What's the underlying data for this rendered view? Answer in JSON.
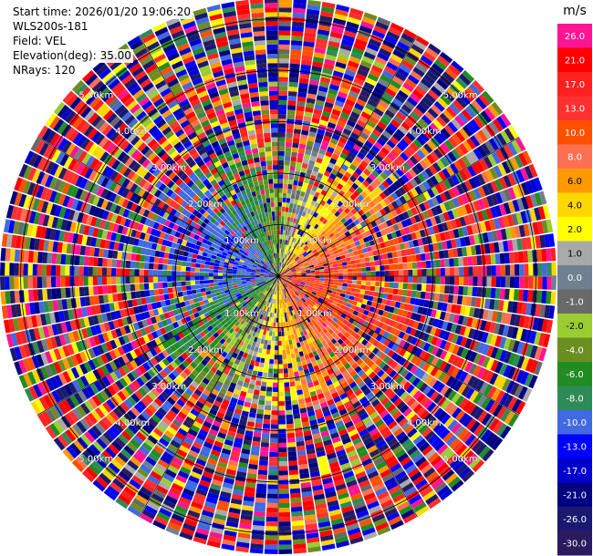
{
  "header": {
    "start_time": "Start time: 2026/01/20 19:06:20",
    "instrument": "WLS200s-181",
    "field": "Field: VEL",
    "elevation": "Elevation(deg): 35.00",
    "nrays": "NRays: 120"
  },
  "chart_data": {
    "type": "heatmap",
    "subtype": "polar-ppi",
    "field": "VEL",
    "n_rays": 120,
    "range_rings_km": [
      1.0,
      2.0,
      3.0,
      4.0,
      5.0
    ],
    "range_ring_labels": [
      "1.00km",
      "2.00km",
      "3.00km",
      "4.00km",
      "5.00km"
    ],
    "spokes_deg": [
      0,
      30,
      60,
      90,
      120,
      150,
      180,
      210,
      240,
      270,
      300,
      330
    ],
    "colorbar": {
      "unit": "m/s",
      "ticks": [
        "26.0",
        "21.0",
        "17.0",
        "13.0",
        "10.0",
        "8.0",
        "6.0",
        "4.0",
        "2.0",
        "1.0",
        "0.0",
        "-1.0",
        "-2.0",
        "-4.0",
        "-6.0",
        "-8.0",
        "-10.0",
        "-13.0",
        "-17.0",
        "-21.0",
        "-26.0",
        "-30.0"
      ],
      "colors": [
        "#ff1493",
        "#ff0000",
        "#ff2020",
        "#ff3030",
        "#ff5000",
        "#ff7050",
        "#ff9900",
        "#ffd700",
        "#ffff00",
        "#a9a9a9",
        "#708090",
        "#696969",
        "#9acd32",
        "#6b8e23",
        "#228b22",
        "#2e8b57",
        "#4169e1",
        "#0000ff",
        "#0000cd",
        "#000080",
        "#191970",
        "#2b1b5e"
      ]
    },
    "pattern": "Near-field (within ~2.5 km): positive velocities (orange/red) east and south-east of center, negative velocities (green/blue) to the west; far range dominated by noisy, random colors."
  }
}
